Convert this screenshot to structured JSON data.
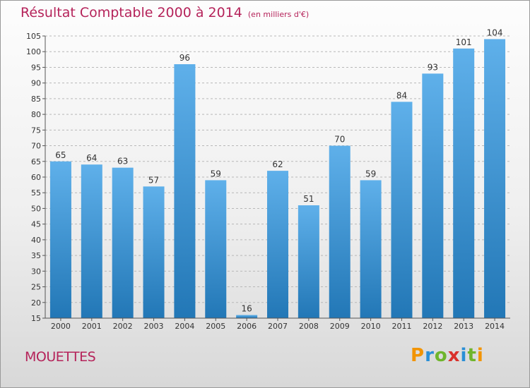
{
  "chart_data": {
    "type": "bar",
    "title": "Résultat Comptable 2000 à 2014",
    "subtitle": "(en milliers d'€)",
    "categories": [
      "2000",
      "2001",
      "2002",
      "2003",
      "2004",
      "2005",
      "2006",
      "2007",
      "2008",
      "2009",
      "2010",
      "2011",
      "2012",
      "2013",
      "2014"
    ],
    "values": [
      65,
      64,
      63,
      57,
      96,
      59,
      16,
      62,
      51,
      70,
      59,
      84,
      93,
      101,
      104
    ],
    "ylim": [
      15,
      105
    ],
    "yticks": [
      15,
      20,
      25,
      30,
      35,
      40,
      45,
      50,
      55,
      60,
      65,
      70,
      75,
      80,
      85,
      90,
      95,
      100,
      105
    ],
    "xlabel": "",
    "ylabel": "",
    "grid": true,
    "data_labels": true,
    "bar_color_top": "#5fb0ea",
    "bar_color_bottom": "#2277b6",
    "title_color": "#b5235a"
  },
  "footer": {
    "commune": "MOUETTES"
  },
  "logo": {
    "text": "Proxiti"
  }
}
